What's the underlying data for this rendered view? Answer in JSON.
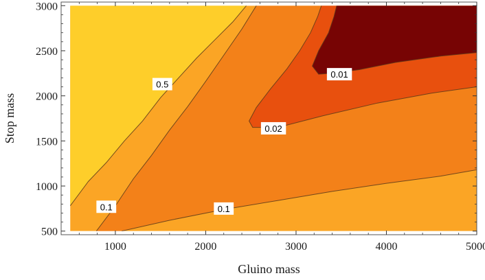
{
  "chart_data": {
    "type": "contour",
    "title": "",
    "xlabel": "Gluino mass",
    "ylabel": "Stop mass",
    "xlim": [
      400,
      5000
    ],
    "ylim": [
      460,
      3040
    ],
    "data_xrange": [
      500,
      5000
    ],
    "data_yrange": [
      500,
      3000
    ],
    "xticks": [
      1000,
      2000,
      3000,
      4000,
      5000
    ],
    "yticks": [
      500,
      1000,
      1500,
      2000,
      2500,
      3000
    ],
    "xtick_labels": [
      "1000",
      "2000",
      "3000",
      "4000",
      "5000"
    ],
    "ytick_labels": [
      "500",
      "1000",
      "1500",
      "2000",
      "2500",
      "3000"
    ],
    "grid": false,
    "regions": [
      {
        "range": "> 0.5",
        "color": "#FECE2A"
      },
      {
        "range": "0.1 – 0.5",
        "color": "#FBA525"
      },
      {
        "range": "0.02 – 0.1",
        "color": "#F38119"
      },
      {
        "range": "0.01 – 0.02",
        "color": "#E8500E"
      },
      {
        "range": "< 0.01",
        "color": "#770404"
      }
    ],
    "contours": [
      {
        "level": "0.5",
        "points": [
          [
            500,
            780
          ],
          [
            700,
            1050
          ],
          [
            900,
            1260
          ],
          [
            1100,
            1500
          ],
          [
            1300,
            1720
          ],
          [
            1500,
            1980
          ],
          [
            1700,
            2200
          ],
          [
            1900,
            2420
          ],
          [
            2100,
            2620
          ],
          [
            2300,
            2820
          ],
          [
            2450,
            3000
          ]
        ]
      },
      {
        "level": "0.1",
        "points": [
          [
            790,
            500
          ],
          [
            1000,
            780
          ],
          [
            1200,
            1080
          ],
          [
            1400,
            1340
          ],
          [
            1600,
            1620
          ],
          [
            1800,
            1880
          ],
          [
            2000,
            2160
          ],
          [
            2200,
            2450
          ],
          [
            2400,
            2740
          ],
          [
            2560,
            3000
          ]
        ]
      },
      {
        "level": "0.1",
        "points": [
          [
            1070,
            500
          ],
          [
            1600,
            620
          ],
          [
            2200,
            740
          ],
          [
            2800,
            840
          ],
          [
            3400,
            940
          ],
          [
            4000,
            1030
          ],
          [
            4600,
            1110
          ],
          [
            5000,
            1180
          ]
        ]
      },
      {
        "level": "0.02",
        "points": [
          [
            3280,
            3000
          ],
          [
            3240,
            2880
          ],
          [
            3160,
            2700
          ],
          [
            3040,
            2500
          ],
          [
            2900,
            2300
          ],
          [
            2720,
            2080
          ],
          [
            2560,
            1870
          ],
          [
            2480,
            1720
          ],
          [
            2520,
            1650
          ],
          [
            2800,
            1650
          ],
          [
            3300,
            1780
          ],
          [
            3900,
            1920
          ],
          [
            4500,
            2030
          ],
          [
            5000,
            2100
          ]
        ]
      },
      {
        "level": "0.01",
        "points": [
          [
            3450,
            3000
          ],
          [
            3420,
            2880
          ],
          [
            3360,
            2700
          ],
          [
            3250,
            2500
          ],
          [
            3180,
            2330
          ],
          [
            3250,
            2240
          ],
          [
            3400,
            2250
          ],
          [
            3700,
            2290
          ],
          [
            4100,
            2370
          ],
          [
            4600,
            2440
          ],
          [
            5000,
            2480
          ]
        ]
      }
    ],
    "contour_labels": [
      {
        "text": "0.5",
        "x": 1520,
        "y": 2130
      },
      {
        "text": "0.1",
        "x": 900,
        "y": 770
      },
      {
        "text": "0.1",
        "x": 2200,
        "y": 750
      },
      {
        "text": "0.02",
        "x": 2750,
        "y": 1640
      },
      {
        "text": "0.01",
        "x": 3480,
        "y": 2240
      }
    ]
  }
}
